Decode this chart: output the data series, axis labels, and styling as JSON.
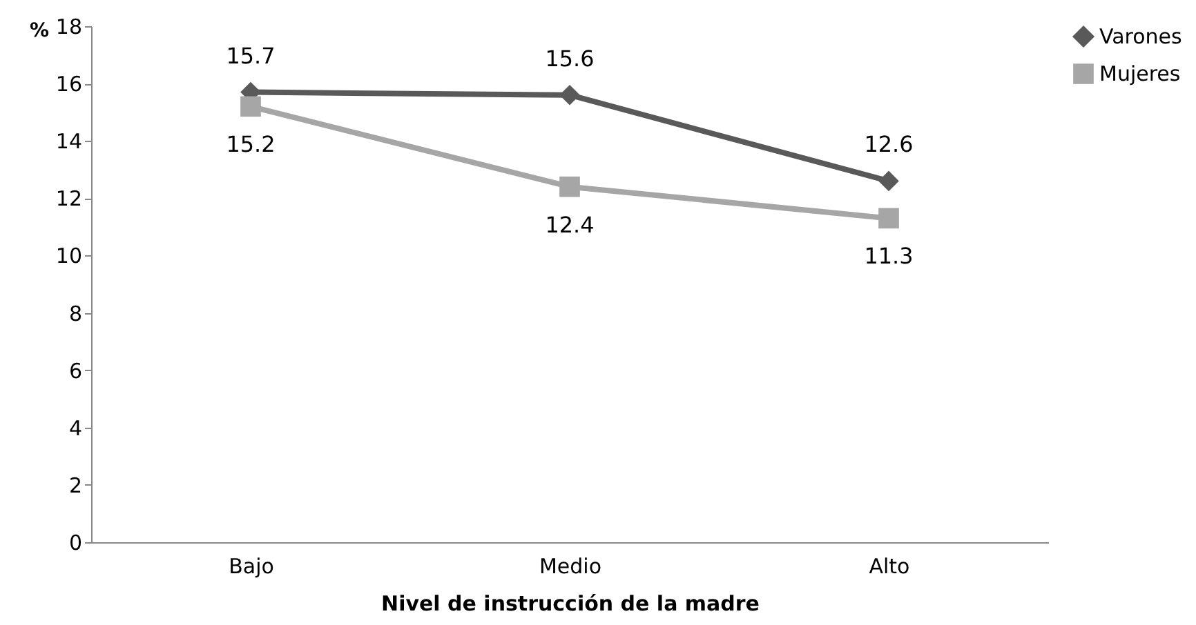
{
  "chart_data": {
    "type": "line",
    "xlabel": "Nivel de instrucción de la madre",
    "ylabel": "%",
    "categories": [
      "Bajo",
      "Medio",
      "Alto"
    ],
    "series": [
      {
        "name": "Varones",
        "color": "#595959",
        "marker": "diamond",
        "values": [
          15.7,
          15.6,
          12.6
        ]
      },
      {
        "name": "Mujeres",
        "color": "#a6a6a6",
        "marker": "square",
        "values": [
          15.2,
          12.4,
          11.3
        ]
      }
    ],
    "ylim": [
      0,
      18
    ],
    "yticks": [
      0,
      2,
      4,
      6,
      8,
      10,
      12,
      14,
      16,
      18
    ],
    "grid": false,
    "legend": "right",
    "data_labels": true,
    "line_style": "solid"
  }
}
